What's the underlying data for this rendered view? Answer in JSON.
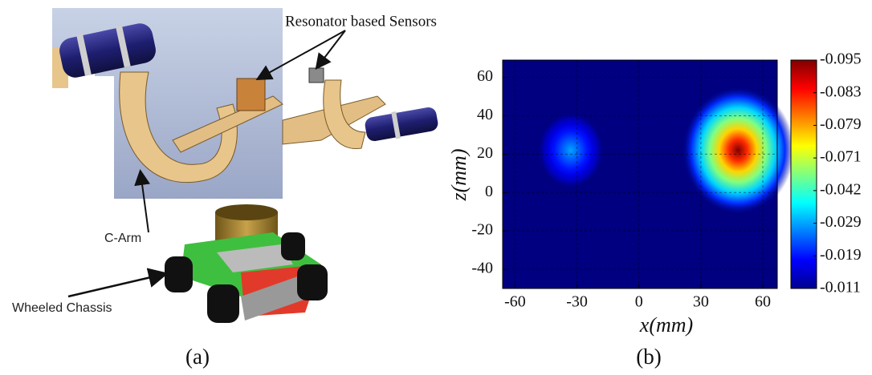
{
  "panel_a": {
    "sensor_label": "Resonator based Sensors",
    "arm_label": "C-Arm",
    "chassis_label": "Wheeled Chassis",
    "caption": "(a)"
  },
  "chart_data": {
    "type": "heatmap",
    "xlabel": "x(mm)",
    "ylabel": "z(mm)",
    "caption": "(b)",
    "xlim": [
      -66,
      67
    ],
    "ylim": [
      -50,
      69
    ],
    "xticks": [
      -60,
      -30,
      0,
      30,
      60
    ],
    "yticks": [
      -40,
      -20,
      0,
      20,
      40,
      60
    ],
    "grid": true,
    "background": -0.011,
    "hotspots": [
      {
        "x": 48,
        "z": 22,
        "value": -0.095
      },
      {
        "x": -33,
        "z": 22,
        "value": -0.029
      }
    ],
    "colorbar_ticks": [
      -0.095,
      -0.083,
      -0.079,
      -0.071,
      -0.042,
      -0.029,
      -0.019,
      -0.011
    ]
  }
}
